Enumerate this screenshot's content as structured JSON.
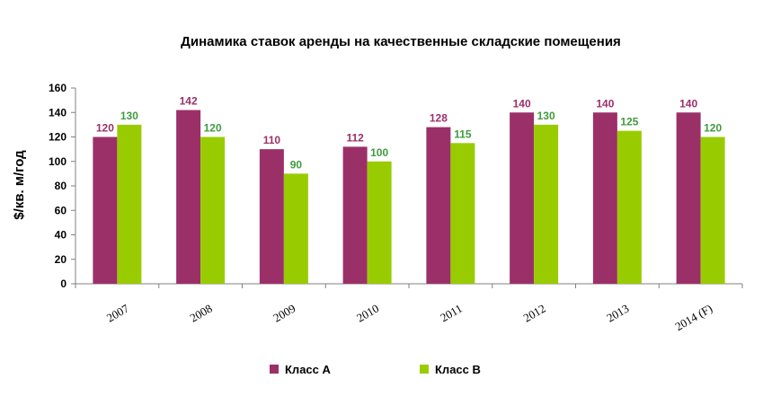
{
  "chart_data": {
    "type": "bar",
    "title": "Динамика ставок аренды на качественные складские помещения",
    "xlabel": "",
    "ylabel": "$/кв. м/год",
    "categories": [
      "2007",
      "2008",
      "2009",
      "2010",
      "2011",
      "2012",
      "2013",
      "2014 (F)"
    ],
    "series": [
      {
        "name": "Класс А",
        "color": "#9B3069",
        "values": [
          120,
          142,
          110,
          112,
          128,
          140,
          140,
          140
        ]
      },
      {
        "name": "Класс В",
        "color": "#99CC00",
        "values": [
          130,
          120,
          90,
          100,
          115,
          130,
          125,
          120
        ]
      }
    ],
    "label_colors": [
      "#9B3069",
      "#3F9B3F"
    ],
    "ylim": [
      0,
      160
    ],
    "yticks": [
      0,
      20,
      40,
      60,
      80,
      100,
      120,
      140,
      160
    ],
    "grid": false,
    "legend_position": "bottom"
  }
}
